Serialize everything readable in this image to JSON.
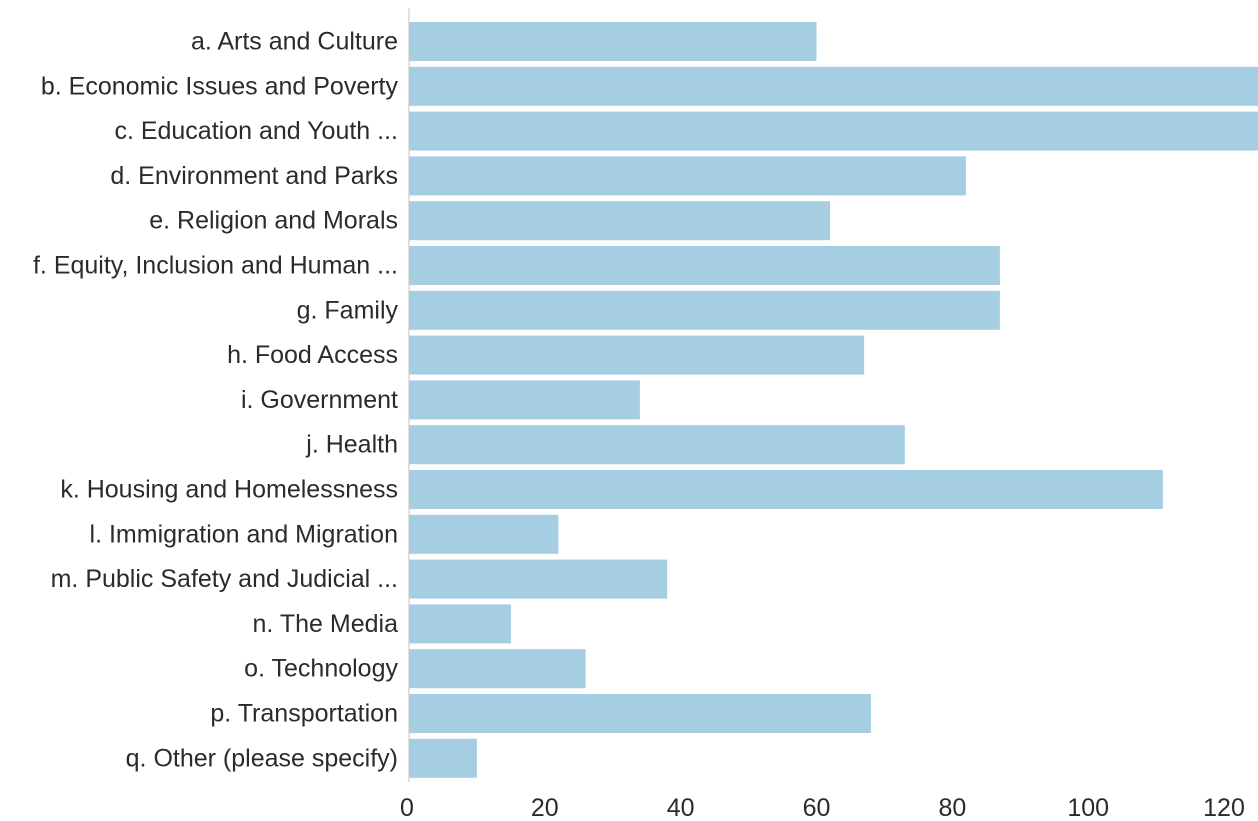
{
  "chart_data": {
    "type": "bar",
    "orientation": "horizontal",
    "categories": [
      "a. Arts and Culture",
      "b. Economic Issues and Poverty",
      "c. Education and Youth ...",
      "d. Environment and Parks",
      "e. Religion and Morals",
      "f. Equity, Inclusion and Human ...",
      "g. Family",
      "h. Food Access",
      "i. Government",
      "j. Health",
      "k. Housing and Homelessness",
      "l. Immigration and Migration",
      "m. Public Safety and Judicial ...",
      "n. The Media",
      "o. Technology",
      "p. Transportation",
      "q. Other (please specify)"
    ],
    "values": [
      60,
      126,
      126,
      82,
      62,
      87,
      87,
      67,
      34,
      73,
      111,
      22,
      38,
      15,
      26,
      68,
      10
    ],
    "xlim": [
      0,
      125
    ],
    "xticks": [
      0,
      20,
      40,
      60,
      80,
      100,
      120
    ],
    "bar_color": "#a6cee3",
    "grid": false,
    "legend": "none"
  }
}
